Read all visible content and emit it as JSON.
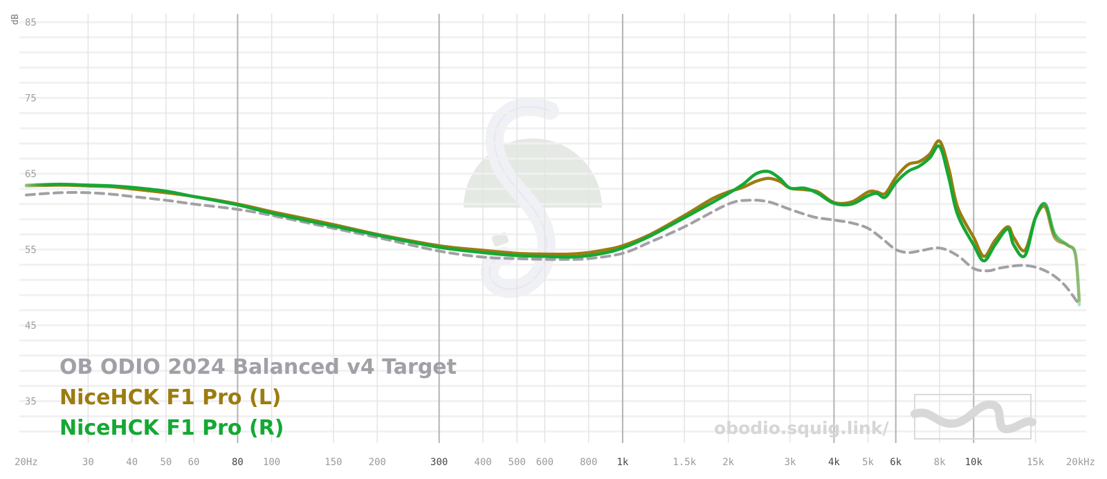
{
  "chart_data": {
    "type": "line",
    "title": "",
    "xlabel": "",
    "ylabel": "dB",
    "x_scale": "log",
    "xlim": [
      20,
      20000
    ],
    "ylim": [
      30,
      86
    ],
    "grid": true,
    "legend_position": "bottom-left",
    "x_ticks": [
      {
        "value": 20,
        "label": "20Hz",
        "major": false
      },
      {
        "value": 30,
        "label": "30",
        "major": false
      },
      {
        "value": 40,
        "label": "40",
        "major": false
      },
      {
        "value": 50,
        "label": "50",
        "major": false
      },
      {
        "value": 60,
        "label": "60",
        "major": false
      },
      {
        "value": 80,
        "label": "80",
        "major": true
      },
      {
        "value": 100,
        "label": "100",
        "major": false
      },
      {
        "value": 150,
        "label": "150",
        "major": false
      },
      {
        "value": 200,
        "label": "200",
        "major": false
      },
      {
        "value": 300,
        "label": "300",
        "major": true
      },
      {
        "value": 400,
        "label": "400",
        "major": false
      },
      {
        "value": 500,
        "label": "500",
        "major": false
      },
      {
        "value": 600,
        "label": "600",
        "major": false
      },
      {
        "value": 800,
        "label": "800",
        "major": false
      },
      {
        "value": 1000,
        "label": "1k",
        "major": true
      },
      {
        "value": 1500,
        "label": "1.5k",
        "major": false
      },
      {
        "value": 2000,
        "label": "2k",
        "major": false
      },
      {
        "value": 3000,
        "label": "3k",
        "major": false
      },
      {
        "value": 4000,
        "label": "4k",
        "major": true
      },
      {
        "value": 5000,
        "label": "5k",
        "major": false
      },
      {
        "value": 6000,
        "label": "6k",
        "major": true
      },
      {
        "value": 8000,
        "label": "8k",
        "major": false
      },
      {
        "value": 10000,
        "label": "10k",
        "major": true
      },
      {
        "value": 15000,
        "label": "15k",
        "major": false
      },
      {
        "value": 20000,
        "label": "20kHz",
        "major": false
      }
    ],
    "y_ticks": [
      {
        "value": 85,
        "label": "85"
      },
      {
        "value": 75,
        "label": "75"
      },
      {
        "value": 65,
        "label": "65"
      },
      {
        "value": 55,
        "label": "55"
      },
      {
        "value": 45,
        "label": "45"
      },
      {
        "value": 35,
        "label": "35"
      }
    ],
    "series": [
      {
        "name": "OB ODIO 2024 Balanced v4 Target",
        "color": "#a39fa6",
        "dashed": true,
        "x": [
          20,
          25,
          30,
          35,
          40,
          50,
          60,
          80,
          100,
          150,
          200,
          300,
          400,
          500,
          600,
          700,
          800,
          1000,
          1200,
          1500,
          2000,
          2300,
          2600,
          3000,
          3500,
          4000,
          4500,
          5000,
          5500,
          6000,
          6500,
          7000,
          8000,
          9000,
          10000,
          11000,
          12000,
          14000,
          16000,
          18000,
          20000
        ],
        "y": [
          62.2,
          62.5,
          62.5,
          62.3,
          62.0,
          61.5,
          61.0,
          60.3,
          59.5,
          57.8,
          56.6,
          54.8,
          54.0,
          53.8,
          53.7,
          53.7,
          53.8,
          54.5,
          56.0,
          58.0,
          61.0,
          61.5,
          61.3,
          60.3,
          59.3,
          58.9,
          58.5,
          57.8,
          56.4,
          55.0,
          54.6,
          54.8,
          55.2,
          54.2,
          52.5,
          52.2,
          52.6,
          52.9,
          52.2,
          50.5,
          47.7
        ]
      },
      {
        "name": "NiceHCK F1 Pro (L)",
        "color": "#9c7c10",
        "dashed": false,
        "x": [
          20,
          25,
          30,
          35,
          40,
          50,
          60,
          80,
          100,
          150,
          200,
          300,
          400,
          500,
          600,
          700,
          800,
          900,
          1000,
          1200,
          1500,
          1800,
          2000,
          2200,
          2400,
          2600,
          2800,
          3000,
          3300,
          3600,
          4000,
          4500,
          5000,
          5300,
          5600,
          6000,
          6500,
          7000,
          7500,
          8000,
          8500,
          9000,
          10000,
          10700,
          11500,
          12500,
          13000,
          14000,
          15000,
          16000,
          17000,
          18500,
          19500,
          20000
        ],
        "y": [
          63.4,
          63.5,
          63.4,
          63.3,
          63.0,
          62.5,
          62.0,
          61.0,
          60.0,
          58.3,
          57.0,
          55.5,
          54.9,
          54.5,
          54.4,
          54.4,
          54.6,
          55.0,
          55.5,
          57.0,
          59.5,
          61.7,
          62.6,
          63.2,
          64.0,
          64.4,
          64.0,
          63.1,
          62.9,
          62.6,
          61.2,
          61.3,
          62.6,
          62.6,
          62.4,
          64.5,
          66.2,
          66.6,
          67.6,
          69.3,
          65.6,
          60.6,
          56.6,
          54.1,
          56.2,
          58.0,
          56.6,
          54.9,
          59.2,
          60.6,
          56.6,
          55.6,
          54.3,
          48.3
        ]
      },
      {
        "name": "NiceHCK F1 Pro (R)",
        "color": "#14a835",
        "dashed": false,
        "x": [
          20,
          25,
          30,
          35,
          40,
          50,
          60,
          80,
          100,
          150,
          200,
          300,
          400,
          500,
          600,
          700,
          800,
          900,
          1000,
          1200,
          1500,
          1800,
          2000,
          2200,
          2400,
          2600,
          2800,
          3000,
          3300,
          3600,
          4000,
          4500,
          5000,
          5300,
          5600,
          6000,
          6500,
          7000,
          7500,
          8000,
          8500,
          9000,
          10000,
          10700,
          11500,
          12500,
          13000,
          14000,
          15000,
          16000,
          17000,
          18500,
          19500,
          20000
        ],
        "y": [
          63.5,
          63.6,
          63.5,
          63.4,
          63.2,
          62.7,
          62.0,
          60.9,
          59.8,
          58.1,
          56.9,
          55.3,
          54.6,
          54.2,
          54.1,
          54.0,
          54.2,
          54.6,
          55.2,
          56.8,
          59.2,
          61.2,
          62.4,
          63.6,
          65.0,
          65.3,
          64.4,
          63.1,
          63.1,
          62.4,
          61.1,
          61.0,
          62.1,
          62.4,
          61.9,
          63.8,
          65.3,
          66.0,
          67.1,
          68.6,
          64.4,
          59.6,
          55.6,
          53.5,
          55.6,
          57.7,
          55.6,
          54.2,
          59.2,
          61.0,
          57.1,
          55.6,
          54.4,
          47.7
        ]
      }
    ]
  },
  "watermark": {
    "site": "obodio.squig.link/"
  }
}
